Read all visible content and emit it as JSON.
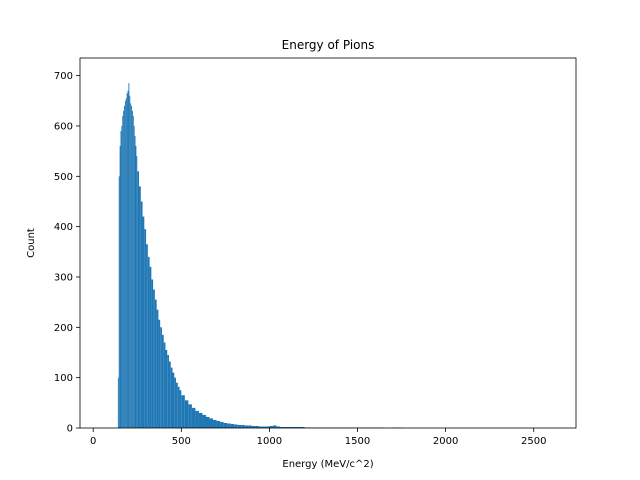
{
  "chart_data": {
    "type": "bar",
    "title": "Energy of Pions",
    "xlabel": "Energy (MeV/c^2)",
    "ylabel": "Count",
    "xlim": [
      -75,
      2740
    ],
    "ylim": [
      0,
      735
    ],
    "xticks": [
      0,
      500,
      1000,
      1500,
      2000,
      2500
    ],
    "yticks": [
      0,
      100,
      200,
      300,
      400,
      500,
      600,
      700
    ],
    "grid": false,
    "color": "#1f77b4",
    "bin_width": 5,
    "bins_start": [
      140,
      145,
      150,
      155,
      160,
      165,
      170,
      175,
      180,
      185,
      190,
      195,
      200,
      205,
      210,
      215,
      220,
      225,
      230,
      235,
      240,
      245,
      250,
      260,
      270,
      280,
      290,
      300,
      310,
      320,
      330,
      340,
      350,
      360,
      370,
      380,
      390,
      400,
      410,
      420,
      430,
      440,
      450,
      460,
      470,
      480,
      490,
      500,
      520,
      540,
      560,
      580,
      600,
      620,
      640,
      660,
      680,
      700,
      720,
      740,
      760,
      780,
      800,
      820,
      840,
      860,
      880,
      900,
      920,
      940,
      960,
      980,
      1000,
      1020,
      1040,
      1060,
      1080,
      1100,
      1150,
      1200,
      1250,
      1300,
      1350,
      1400,
      1450,
      1500,
      1550,
      1600,
      1650,
      1700
    ],
    "bins_end": [
      145,
      150,
      155,
      160,
      165,
      170,
      175,
      180,
      185,
      190,
      195,
      200,
      205,
      210,
      215,
      220,
      225,
      230,
      235,
      240,
      245,
      250,
      260,
      270,
      280,
      290,
      300,
      310,
      320,
      330,
      340,
      350,
      360,
      370,
      380,
      390,
      400,
      410,
      420,
      430,
      440,
      450,
      460,
      470,
      480,
      490,
      500,
      520,
      540,
      560,
      580,
      600,
      620,
      640,
      660,
      680,
      700,
      720,
      740,
      760,
      780,
      800,
      820,
      840,
      860,
      880,
      900,
      920,
      940,
      960,
      980,
      1000,
      1020,
      1040,
      1060,
      1080,
      1100,
      1150,
      1200,
      1250,
      1300,
      1350,
      1400,
      1450,
      1500,
      1550,
      1600,
      1650,
      1700,
      1750
    ],
    "values": [
      100,
      500,
      560,
      590,
      600,
      620,
      630,
      640,
      650,
      655,
      665,
      670,
      685,
      660,
      645,
      640,
      630,
      620,
      600,
      580,
      560,
      540,
      510,
      480,
      450,
      420,
      395,
      365,
      340,
      320,
      295,
      275,
      255,
      235,
      215,
      200,
      185,
      170,
      155,
      145,
      132,
      120,
      110,
      100,
      90,
      82,
      75,
      65,
      55,
      47,
      40,
      34,
      30,
      26,
      22,
      19,
      16,
      14,
      12,
      10,
      9,
      8,
      7,
      6,
      6,
      5,
      5,
      4,
      4,
      3,
      3,
      3,
      4,
      5,
      3,
      2,
      2,
      2,
      2,
      1,
      1,
      1,
      1,
      1,
      1,
      1,
      1,
      1,
      0,
      1
    ]
  }
}
